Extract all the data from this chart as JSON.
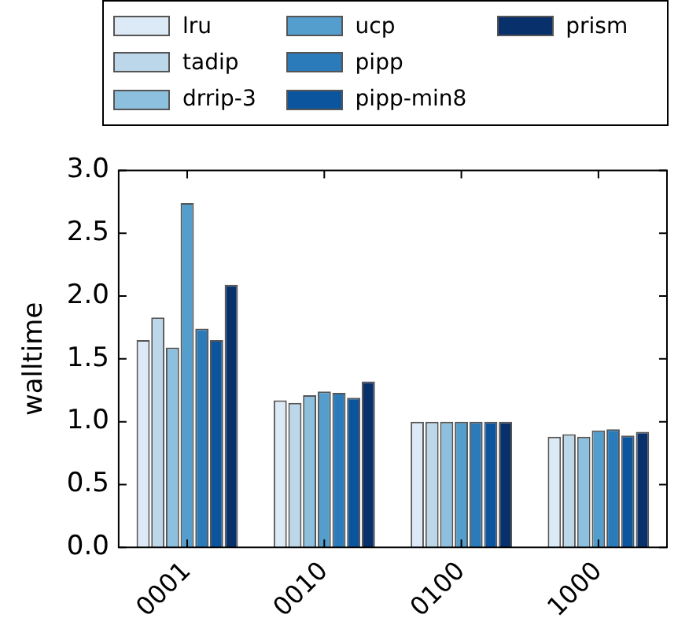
{
  "chart_data": {
    "type": "bar",
    "ylabel": "walltime",
    "categories": [
      "0001",
      "0010",
      "0100",
      "1000"
    ],
    "ylim": [
      0,
      3
    ],
    "yticks": [
      {
        "value": 0,
        "label": "0.0"
      },
      {
        "value": 0.5,
        "label": "0.5"
      },
      {
        "value": 1,
        "label": "1.0"
      },
      {
        "value": 1.5,
        "label": "1.5"
      },
      {
        "value": 2,
        "label": "2.0"
      },
      {
        "value": 2.5,
        "label": "2.5"
      },
      {
        "value": 3,
        "label": "3.0"
      }
    ],
    "grid": false,
    "legend": "top",
    "series": [
      {
        "name": "lru",
        "color": "#dce9f6",
        "values": [
          1.65,
          1.17,
          1.0,
          0.88
        ]
      },
      {
        "name": "tadip",
        "color": "#bcd7ea",
        "values": [
          1.83,
          1.15,
          1.0,
          0.9
        ]
      },
      {
        "name": "drrip-3",
        "color": "#8dc0de",
        "values": [
          1.59,
          1.21,
          1.0,
          0.88
        ]
      },
      {
        "name": "ucp",
        "color": "#539ecd",
        "values": [
          2.74,
          1.24,
          1.0,
          0.93
        ]
      },
      {
        "name": "pipp",
        "color": "#2b7bba",
        "values": [
          1.74,
          1.23,
          1.0,
          0.94
        ]
      },
      {
        "name": "pipp-min8",
        "color": "#0b559f",
        "values": [
          1.65,
          1.19,
          1.0,
          0.89
        ]
      },
      {
        "name": "prism",
        "color": "#08306b",
        "values": [
          2.09,
          1.32,
          1.0,
          0.92
        ]
      }
    ]
  }
}
